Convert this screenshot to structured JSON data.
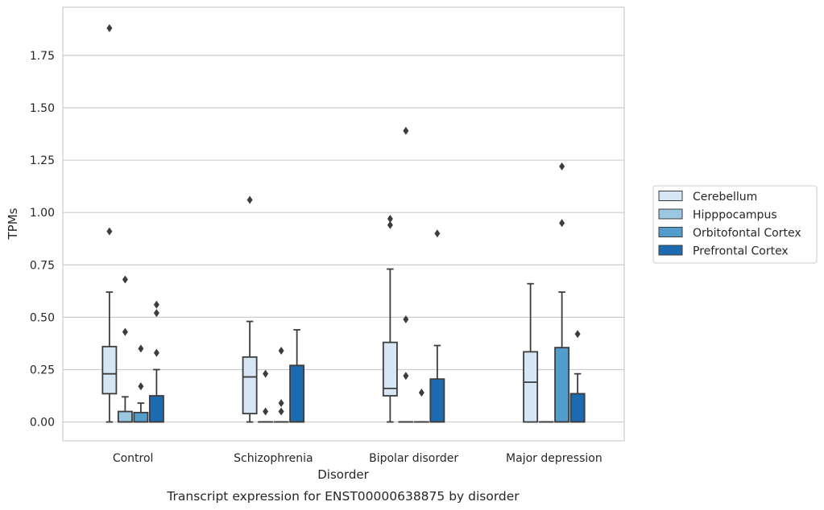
{
  "chart_data": {
    "type": "boxplot",
    "title": "",
    "caption": "Transcript expression for ENST00000638875 by disorder",
    "xlabel": "Disorder",
    "ylabel": "TPMs",
    "ylim": [
      -0.09,
      1.98
    ],
    "yticks": [
      0.0,
      0.25,
      0.5,
      0.75,
      1.0,
      1.25,
      1.5,
      1.75
    ],
    "ytick_labels": [
      "0.00",
      "0.25",
      "0.50",
      "0.75",
      "1.00",
      "1.25",
      "1.50",
      "1.75"
    ],
    "grid": "horizontal",
    "legend_position": "right",
    "categories": [
      "Control",
      "Schizophrenia",
      "Bipolar disorder",
      "Major depression"
    ],
    "series": [
      {
        "name": "Cerebellum",
        "color": "#d6e6f4",
        "boxes": [
          {
            "whislo": 0.0,
            "q1": 0.135,
            "med": 0.23,
            "q3": 0.36,
            "whishi": 0.62,
            "fliers": [
              0.91,
              1.88
            ]
          },
          {
            "whislo": 0.0,
            "q1": 0.04,
            "med": 0.215,
            "q3": 0.31,
            "whishi": 0.48,
            "fliers": [
              1.06
            ]
          },
          {
            "whislo": 0.0,
            "q1": 0.125,
            "med": 0.16,
            "q3": 0.38,
            "whishi": 0.73,
            "fliers": [
              0.94,
              0.97
            ]
          },
          {
            "whislo": 0.0,
            "q1": 0.0,
            "med": 0.19,
            "q3": 0.335,
            "whishi": 0.66,
            "fliers": []
          }
        ]
      },
      {
        "name": "Hipppocampus",
        "color": "#9ac8e0",
        "boxes": [
          {
            "whislo": 0.0,
            "q1": 0.0,
            "med": 0.0,
            "q3": 0.05,
            "whishi": 0.12,
            "fliers": [
              0.43,
              0.68
            ]
          },
          {
            "whislo": 0.0,
            "q1": 0.0,
            "med": 0.0,
            "q3": 0.0,
            "whishi": 0.0,
            "fliers": [
              0.05,
              0.23
            ]
          },
          {
            "whislo": 0.0,
            "q1": 0.0,
            "med": 0.0,
            "q3": 0.0,
            "whishi": 0.0,
            "fliers": [
              0.22,
              0.49,
              1.39
            ]
          },
          {
            "whislo": 0.0,
            "q1": 0.0,
            "med": 0.0,
            "q3": 0.0,
            "whishi": 0.0,
            "fliers": []
          }
        ]
      },
      {
        "name": "Orbitofontal Cortex",
        "color": "#529dcc",
        "boxes": [
          {
            "whislo": 0.0,
            "q1": 0.0,
            "med": 0.0,
            "q3": 0.045,
            "whishi": 0.09,
            "fliers": [
              0.17,
              0.35
            ]
          },
          {
            "whislo": 0.0,
            "q1": 0.0,
            "med": 0.0,
            "q3": 0.0,
            "whishi": 0.0,
            "fliers": [
              0.05,
              0.09,
              0.34
            ]
          },
          {
            "whislo": 0.0,
            "q1": 0.0,
            "med": 0.0,
            "q3": 0.0,
            "whishi": 0.0,
            "fliers": [
              0.14
            ]
          },
          {
            "whislo": 0.0,
            "q1": 0.0,
            "med": 0.0,
            "q3": 0.355,
            "whishi": 0.62,
            "fliers": [
              0.95,
              1.22
            ]
          }
        ]
      },
      {
        "name": "Prefrontal Cortex",
        "color": "#1c6aaf",
        "boxes": [
          {
            "whislo": 0.0,
            "q1": 0.0,
            "med": 0.0,
            "q3": 0.125,
            "whishi": 0.25,
            "fliers": [
              0.33,
              0.52,
              0.56
            ]
          },
          {
            "whislo": 0.0,
            "q1": 0.0,
            "med": 0.0,
            "q3": 0.27,
            "whishi": 0.44,
            "fliers": []
          },
          {
            "whislo": 0.0,
            "q1": 0.0,
            "med": 0.0,
            "q3": 0.205,
            "whishi": 0.365,
            "fliers": [
              0.9
            ]
          },
          {
            "whislo": 0.0,
            "q1": 0.0,
            "med": 0.0,
            "q3": 0.135,
            "whishi": 0.23,
            "fliers": [
              0.42
            ]
          }
        ]
      }
    ]
  }
}
